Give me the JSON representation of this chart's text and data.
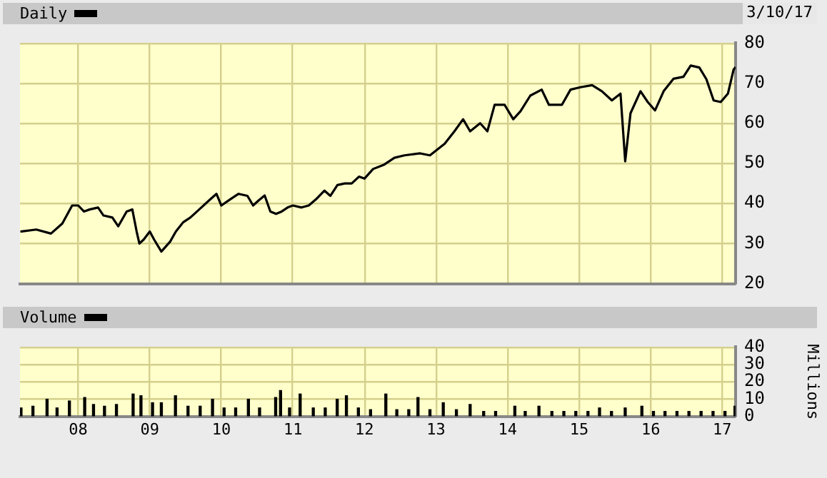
{
  "chart_data": [
    {
      "type": "line",
      "legend": "top left",
      "annotations": [
        "3/10/17"
      ],
      "grid": true,
      "tick_labels": "y",
      "marker": "none",
      "xlim": [
        "2007-03-10",
        "2017-03-10"
      ],
      "xticks": [
        {
          "value": "2008-01-01",
          "label": null
        },
        {
          "value": "2009-01-01",
          "label": null
        },
        {
          "value": "2010-01-01",
          "label": null
        },
        {
          "value": "2011-01-01",
          "label": null
        },
        {
          "value": "2012-01-01",
          "label": null
        },
        {
          "value": "2013-01-01",
          "label": null
        },
        {
          "value": "2014-01-01",
          "label": null
        },
        {
          "value": "2015-01-01",
          "label": null
        },
        {
          "value": "2016-01-01",
          "label": null
        },
        {
          "value": "2017-01-01",
          "label": null
        }
      ],
      "ylim": [
        20,
        80
      ],
      "yticks": [
        20,
        30,
        40,
        50,
        60,
        70,
        80
      ],
      "x": [
        "2007-03-12",
        "2007-06-01",
        "2007-08-15",
        "2007-10-12",
        "2007-12-01",
        "2008-01-01",
        "2008-01-30",
        "2008-02-28",
        "2008-04-12",
        "2008-05-10",
        "2008-06-24",
        "2008-07-24",
        "2008-09-05",
        "2008-10-04",
        "2008-10-26",
        "2008-11-09",
        "2008-12-01",
        "2009-01-01",
        "2009-01-23",
        "2009-03-01",
        "2009-04-15",
        "2009-05-14",
        "2009-06-20",
        "2009-07-27",
        "2009-09-10",
        "2009-10-31",
        "2009-12-07",
        "2010-01-01",
        "2010-02-14",
        "2010-03-30",
        "2010-05-14",
        "2010-06-12",
        "2010-07-11",
        "2010-08-10",
        "2010-09-08",
        "2010-10-07",
        "2010-11-05",
        "2010-12-05",
        "2011-01-01",
        "2011-02-14",
        "2011-03-23",
        "2011-04-28",
        "2011-06-11",
        "2011-07-11",
        "2011-08-16",
        "2011-09-22",
        "2011-10-28",
        "2011-12-04",
        "2012-01-01",
        "2012-02-14",
        "2012-04-12",
        "2012-06-03",
        "2012-07-24",
        "2012-10-12",
        "2012-12-01",
        "2013-02-14",
        "2013-04-05",
        "2013-05-19",
        "2013-06-24",
        "2013-08-14",
        "2013-09-20",
        "2013-10-27",
        "2013-12-17",
        "2014-01-30",
        "2014-03-08",
        "2014-04-27",
        "2014-06-24",
        "2014-07-31",
        "2014-10-05",
        "2014-11-18",
        "2015-01-08",
        "2015-03-08",
        "2015-04-27",
        "2015-06-17",
        "2015-07-31",
        "2015-08-24",
        "2015-09-20",
        "2015-11-10",
        "2015-12-17",
        "2016-01-23",
        "2016-03-08",
        "2016-04-27",
        "2016-06-17",
        "2016-07-24",
        "2016-09-06",
        "2016-10-12",
        "2016-11-18",
        "2016-12-24",
        "2017-01-30",
        "2017-02-28",
        "2017-03-10"
      ],
      "series": [
        {
          "name": "Daily",
          "color": "#000000",
          "values": [
            33,
            33.5,
            32.5,
            35,
            39.5,
            39.5,
            38,
            38.5,
            39,
            37,
            36.5,
            34.3,
            38,
            38.5,
            33,
            30,
            31,
            33,
            31,
            28,
            30.5,
            33,
            35.3,
            36.5,
            38.5,
            40.8,
            42.4,
            39.5,
            41,
            42.4,
            41.9,
            39.5,
            40.8,
            42,
            38,
            37.4,
            38,
            39,
            39.5,
            39,
            39.5,
            41,
            43.2,
            41.9,
            44.6,
            45,
            45,
            46.7,
            46.2,
            48.6,
            49.7,
            51.4,
            52,
            52.5,
            52,
            54.9,
            58,
            61,
            58,
            60,
            58,
            64.6,
            64.6,
            61,
            63,
            66.9,
            68.4,
            64.6,
            64.6,
            68.4,
            69,
            69.5,
            68,
            65.7,
            67.4,
            50.5,
            62.5,
            68,
            65.3,
            63.2,
            68,
            71.1,
            71.6,
            74.4,
            73.9,
            71,
            65.7,
            65.3,
            67.4,
            73.4,
            74
          ]
        }
      ]
    },
    {
      "type": "bar",
      "legend": "top left",
      "grid": true,
      "ylabel": "Millions",
      "xlim": [
        "2007-03-10",
        "2017-03-10"
      ],
      "xticks": [
        {
          "value": "2008-01-01",
          "label": "08"
        },
        {
          "value": "2009-01-01",
          "label": "09"
        },
        {
          "value": "2010-01-01",
          "label": "10"
        },
        {
          "value": "2011-01-01",
          "label": "11"
        },
        {
          "value": "2012-01-01",
          "label": "12"
        },
        {
          "value": "2013-01-01",
          "label": "13"
        },
        {
          "value": "2014-01-01",
          "label": "14"
        },
        {
          "value": "2015-01-01",
          "label": "15"
        },
        {
          "value": "2016-01-01",
          "label": "16"
        },
        {
          "value": "2017-01-01",
          "label": "17"
        }
      ],
      "ylim": [
        0,
        40
      ],
      "yticks": [
        0,
        10,
        20,
        30,
        40
      ],
      "x": [
        "2007-03-15",
        "2007-05-15",
        "2007-07-26",
        "2007-09-15",
        "2007-11-17",
        "2008-02-03",
        "2008-03-20",
        "2008-05-15",
        "2008-07-15",
        "2008-10-08",
        "2008-11-17",
        "2009-01-15",
        "2009-03-01",
        "2009-05-12",
        "2009-07-15",
        "2009-09-15",
        "2009-11-17",
        "2010-01-15",
        "2010-03-15",
        "2010-05-19",
        "2010-07-15",
        "2010-10-05",
        "2010-10-30",
        "2010-12-15",
        "2011-02-07",
        "2011-04-15",
        "2011-06-15",
        "2011-08-15",
        "2011-10-01",
        "2011-12-01",
        "2012-02-01",
        "2012-04-20",
        "2012-06-15",
        "2012-08-15",
        "2012-10-01",
        "2012-12-01",
        "2013-02-07",
        "2013-04-15",
        "2013-06-24",
        "2013-09-01",
        "2013-11-01",
        "2014-02-07",
        "2014-04-01",
        "2014-06-10",
        "2014-08-15",
        "2014-10-15",
        "2014-12-15",
        "2015-02-15",
        "2015-04-15",
        "2015-06-15",
        "2015-08-24",
        "2015-11-17",
        "2016-01-15",
        "2016-03-15",
        "2016-05-15",
        "2016-07-15",
        "2016-09-15",
        "2016-11-15",
        "2017-01-15",
        "2017-03-07"
      ],
      "series": [
        {
          "name": "Volume",
          "color": "#000000",
          "values": [
            5,
            6,
            10,
            5,
            9,
            11,
            7,
            6,
            7,
            13,
            12,
            8,
            8,
            12,
            6,
            6,
            10,
            5,
            5,
            10,
            5,
            11,
            15,
            5,
            13,
            5,
            5,
            10,
            12,
            5,
            4,
            13,
            4,
            4,
            11,
            4,
            8,
            4,
            7,
            3,
            3,
            6,
            3,
            6,
            3,
            3,
            3,
            3,
            5,
            3,
            5,
            6,
            3,
            3,
            3,
            3,
            3,
            3,
            3,
            6
          ]
        }
      ]
    }
  ]
}
